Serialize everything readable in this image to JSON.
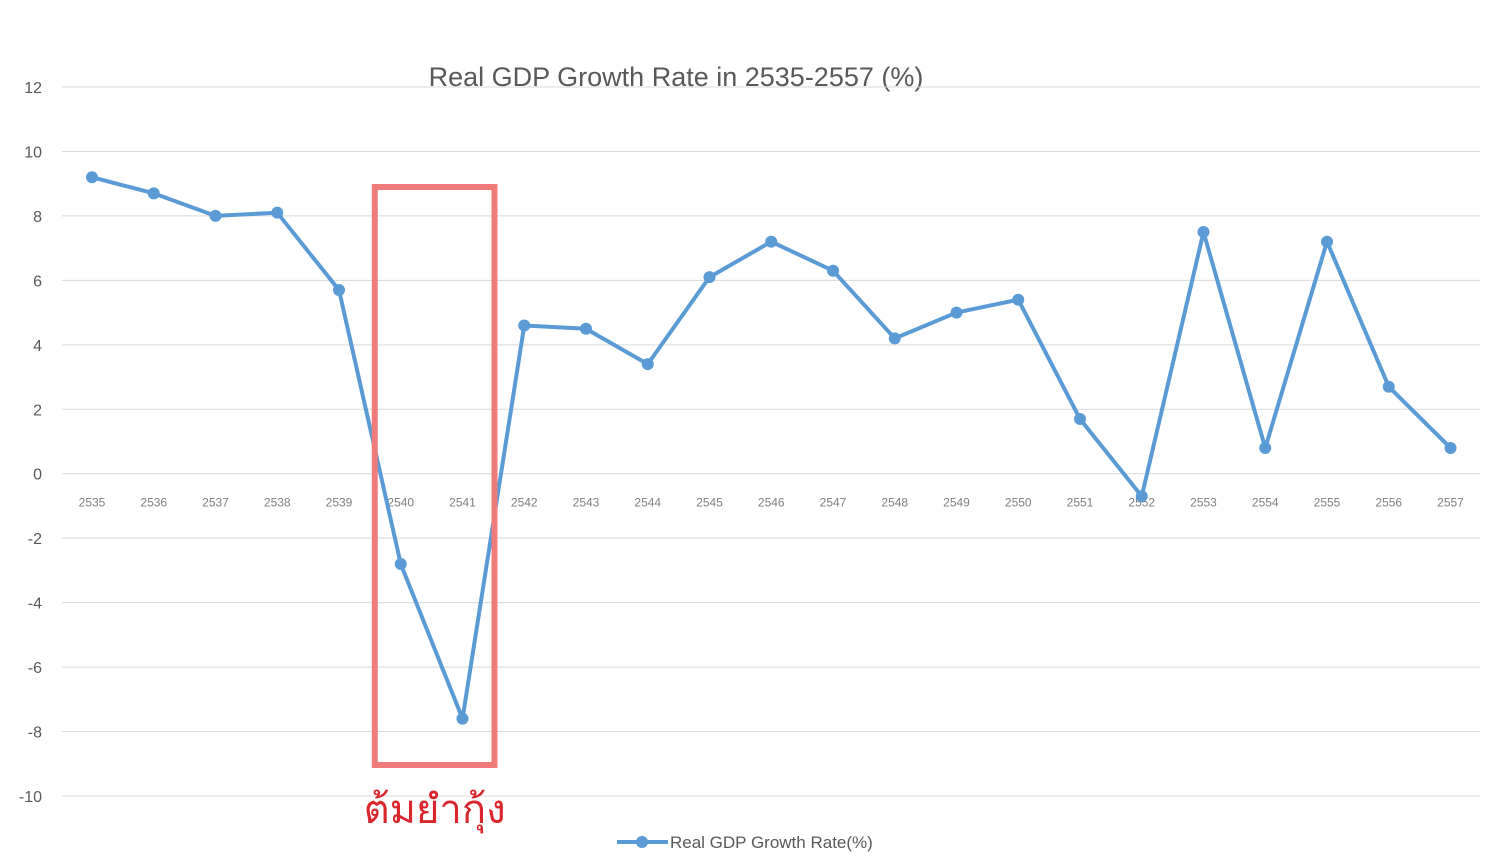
{
  "chart_data": {
    "type": "line",
    "title": "Real GDP Growth Rate in 2535-2557 (%)",
    "xlabel": "",
    "ylabel": "",
    "ylim": [
      -10,
      12
    ],
    "y_ticks": [
      12,
      10,
      8,
      6,
      4,
      2,
      0,
      -2,
      -4,
      -6,
      -8,
      -10
    ],
    "grid": true,
    "legend_position": "bottom-center",
    "categories": [
      "2535",
      "2536",
      "2537",
      "2538",
      "2539",
      "2540",
      "2541",
      "2542",
      "2543",
      "2544",
      "2545",
      "2546",
      "2547",
      "2548",
      "2549",
      "2550",
      "2551",
      "2552",
      "2553",
      "2554",
      "2555",
      "2556",
      "2557"
    ],
    "series": [
      {
        "name": "Real GDP Growth Rate(%)",
        "color": "#5b9bd5",
        "values": [
          9.2,
          8.7,
          8.0,
          8.1,
          5.7,
          -2.8,
          -7.6,
          4.6,
          4.5,
          3.4,
          6.1,
          7.2,
          6.3,
          4.2,
          5.0,
          5.4,
          1.7,
          -0.7,
          7.5,
          0.8,
          7.2,
          2.7,
          0.8
        ]
      }
    ],
    "annotation": {
      "text": "ต้มยำกุ้ง",
      "color": "#d9262c",
      "box_color": "#ef7b7b",
      "range": [
        "2540",
        "2541"
      ]
    }
  }
}
